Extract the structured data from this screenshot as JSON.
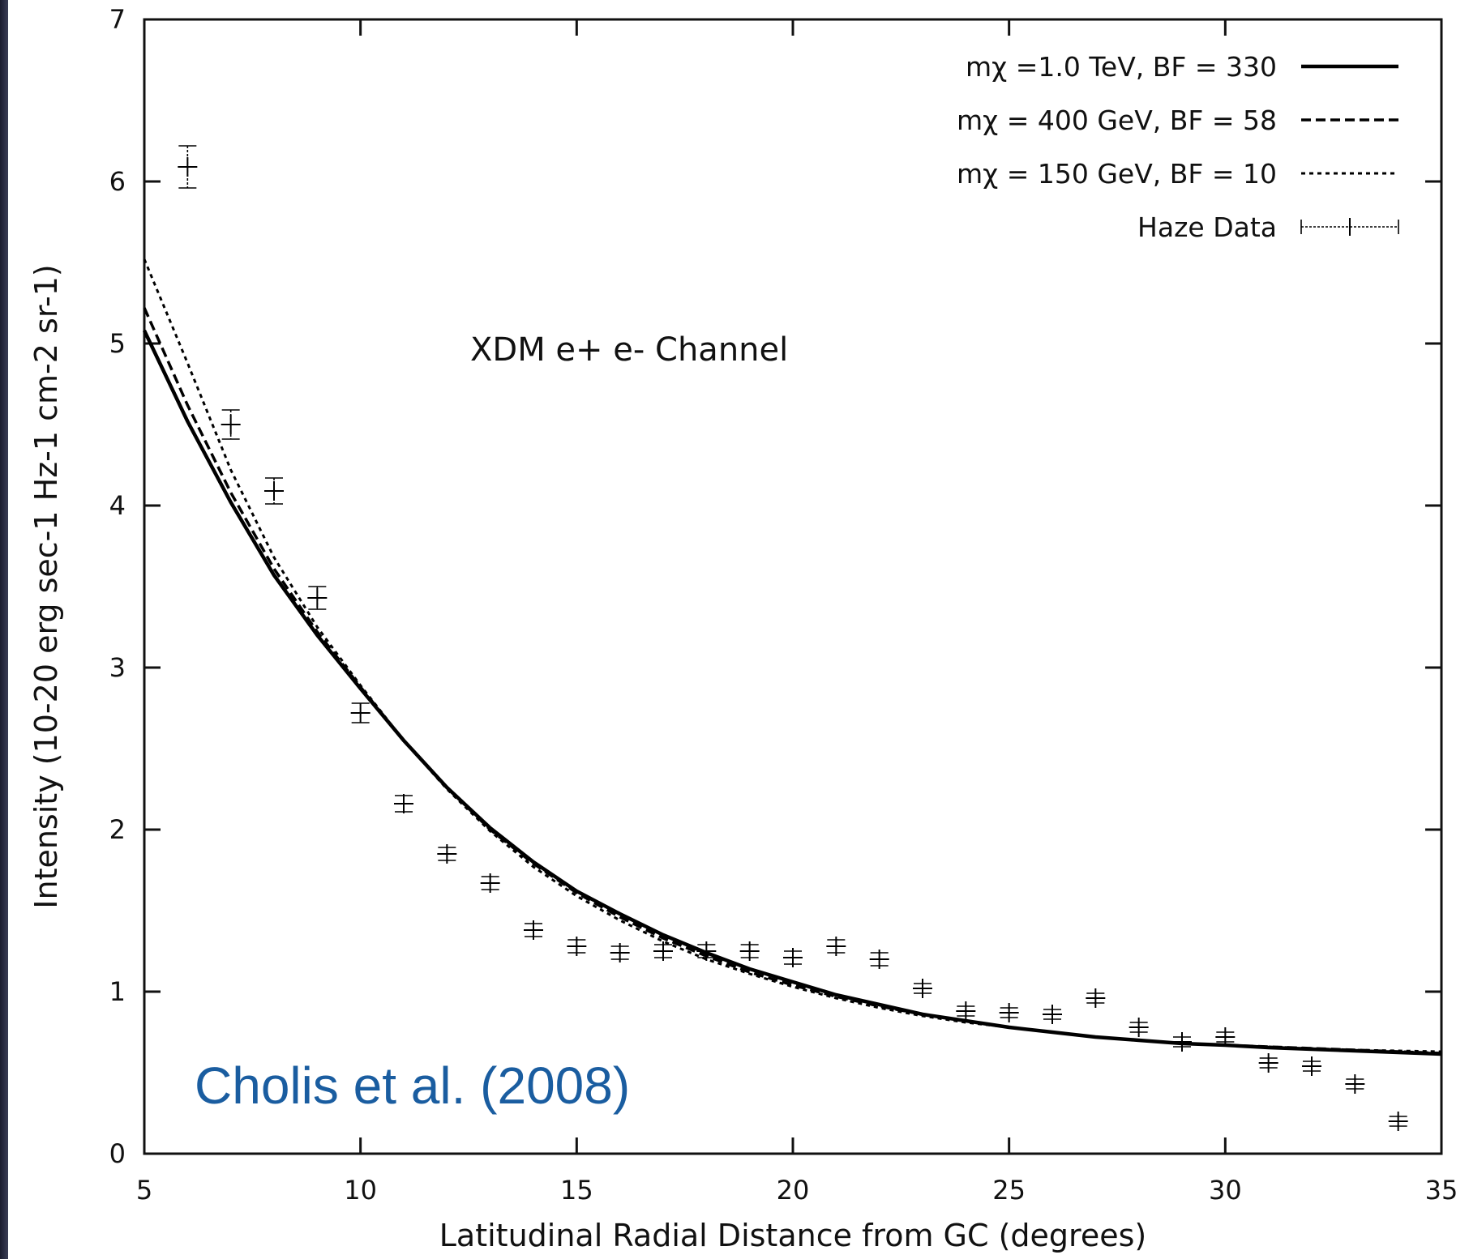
{
  "colors": {
    "axis": "#111111",
    "series": "#000000",
    "credit": "#1a5da0"
  },
  "chart_data": {
    "type": "line",
    "title": "",
    "xlabel": "Latitudinal Radial Distance from GC (degrees)",
    "ylabel": "Intensity (10-20 erg sec-1 Hz-1 cm-2 sr-1)",
    "xlim": [
      5,
      35
    ],
    "ylim": [
      0,
      7
    ],
    "xticks": [
      "5",
      "10",
      "15",
      "20",
      "25",
      "30",
      "35"
    ],
    "yticks": [
      "0",
      "1",
      "2",
      "3",
      "4",
      "5",
      "6",
      "7"
    ],
    "grid": false,
    "legend_position": "top-right",
    "annotation": "XDM e+ e- Channel",
    "credit": "Cholis et al. (2008)",
    "series": [
      {
        "name": "mχ =1.0 TeV, BF = 330",
        "style": "solid",
        "x": [
          5,
          6,
          7,
          8,
          9,
          10,
          11,
          12,
          13,
          14,
          15,
          16,
          17,
          18,
          19,
          20,
          21,
          22,
          23,
          24,
          25,
          26,
          27,
          28,
          29,
          30,
          31,
          32,
          33,
          34,
          35
        ],
        "y": [
          5.08,
          4.52,
          4.02,
          3.57,
          3.2,
          2.87,
          2.55,
          2.26,
          2.01,
          1.8,
          1.62,
          1.48,
          1.35,
          1.24,
          1.14,
          1.06,
          0.98,
          0.92,
          0.86,
          0.82,
          0.78,
          0.75,
          0.72,
          0.7,
          0.68,
          0.67,
          0.655,
          0.645,
          0.635,
          0.625,
          0.615
        ]
      },
      {
        "name": "mχ = 400 GeV, BF = 58",
        "style": "dashed",
        "x": [
          5,
          6,
          7,
          8,
          9,
          10,
          11,
          12,
          13,
          14,
          15,
          16,
          17,
          18,
          19,
          20,
          21,
          22,
          23,
          24,
          25,
          26,
          27,
          28,
          29,
          30,
          31,
          32,
          33,
          34,
          35
        ],
        "y": [
          5.22,
          4.62,
          4.08,
          3.61,
          3.22,
          2.88,
          2.55,
          2.26,
          2.0,
          1.79,
          1.61,
          1.46,
          1.33,
          1.22,
          1.12,
          1.04,
          0.97,
          0.91,
          0.86,
          0.82,
          0.78,
          0.75,
          0.72,
          0.7,
          0.68,
          0.67,
          0.66,
          0.65,
          0.64,
          0.63,
          0.62
        ]
      },
      {
        "name": "mχ = 150 GeV, BF = 10",
        "style": "dotted",
        "x": [
          5,
          6,
          7,
          8,
          9,
          10,
          11,
          12,
          13,
          14,
          15,
          16,
          17,
          18,
          19,
          20,
          21,
          22,
          23,
          24,
          25,
          26,
          27,
          28,
          29,
          30,
          31,
          32,
          33,
          34,
          35
        ],
        "y": [
          5.52,
          4.88,
          4.22,
          3.68,
          3.25,
          2.89,
          2.55,
          2.25,
          1.99,
          1.77,
          1.59,
          1.44,
          1.31,
          1.2,
          1.11,
          1.03,
          0.96,
          0.9,
          0.85,
          0.81,
          0.78,
          0.75,
          0.72,
          0.7,
          0.68,
          0.67,
          0.66,
          0.65,
          0.64,
          0.635,
          0.63
        ]
      },
      {
        "name": "Haze Data",
        "style": "errorbar",
        "x": [
          6,
          7,
          8,
          9,
          10,
          11,
          12,
          13,
          14,
          15,
          16,
          17,
          18,
          19,
          20,
          21,
          22,
          23,
          24,
          25,
          26,
          27,
          28,
          29,
          30,
          31,
          32,
          33,
          34
        ],
        "y": [
          6.09,
          4.5,
          4.09,
          3.43,
          2.72,
          2.16,
          1.85,
          1.67,
          1.38,
          1.28,
          1.24,
          1.25,
          1.25,
          1.25,
          1.21,
          1.28,
          1.2,
          1.02,
          0.88,
          0.87,
          0.86,
          0.96,
          0.78,
          0.69,
          0.72,
          0.56,
          0.54,
          0.43,
          0.2
        ],
        "yerr": [
          0.13,
          0.09,
          0.08,
          0.07,
          0.06,
          0.05,
          0.04,
          0.04,
          0.04,
          0.04,
          0.04,
          0.04,
          0.04,
          0.04,
          0.04,
          0.04,
          0.04,
          0.03,
          0.03,
          0.03,
          0.03,
          0.03,
          0.03,
          0.03,
          0.03,
          0.03,
          0.03,
          0.03,
          0.03
        ]
      }
    ]
  }
}
